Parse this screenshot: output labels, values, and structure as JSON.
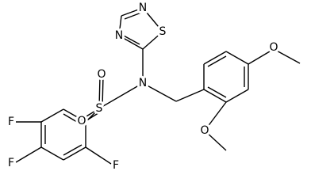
{
  "atoms": [
    {
      "label": "N"
    },
    {
      "label": "S"
    },
    {
      "label": "N"
    },
    {
      "label": "N"
    },
    {
      "label": "S"
    },
    {
      "label": "O"
    },
    {
      "label": "O"
    },
    {
      "label": "O"
    },
    {
      "label": "O"
    },
    {
      "label": "F"
    },
    {
      "label": "F"
    },
    {
      "label": "F"
    }
  ]
}
